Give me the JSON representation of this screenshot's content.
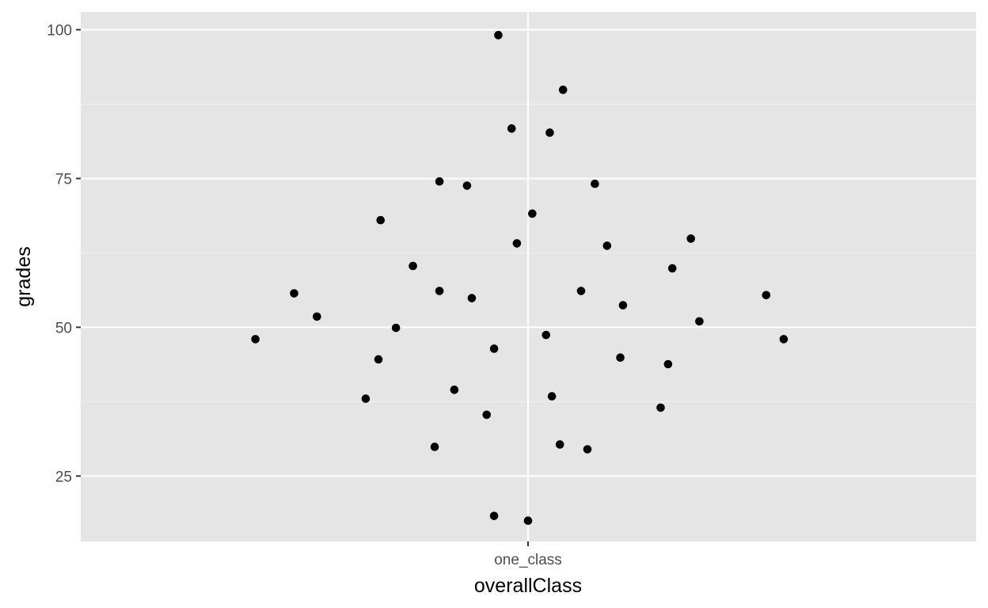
{
  "chart_data": {
    "type": "scatter",
    "title": "",
    "xlabel": "overallClass",
    "ylabel": "grades",
    "categories": [
      "one_class"
    ],
    "y_ticks": [
      25,
      50,
      75,
      100
    ],
    "ylim": [
      14,
      103
    ],
    "grid": true,
    "x_jitter_range": [
      -0.5,
      0.5
    ],
    "points": [
      {
        "x": -0.056,
        "y": 99.1
      },
      {
        "x": 0.066,
        "y": 89.9
      },
      {
        "x": -0.031,
        "y": 83.4
      },
      {
        "x": 0.041,
        "y": 82.7
      },
      {
        "x": -0.167,
        "y": 74.5
      },
      {
        "x": -0.115,
        "y": 73.8
      },
      {
        "x": 0.126,
        "y": 74.1
      },
      {
        "x": 0.008,
        "y": 69.1
      },
      {
        "x": -0.278,
        "y": 68.0
      },
      {
        "x": -0.021,
        "y": 64.1
      },
      {
        "x": 0.149,
        "y": 63.7
      },
      {
        "x": 0.307,
        "y": 64.9
      },
      {
        "x": -0.217,
        "y": 60.3
      },
      {
        "x": 0.272,
        "y": 59.9
      },
      {
        "x": -0.441,
        "y": 55.7
      },
      {
        "x": -0.167,
        "y": 56.1
      },
      {
        "x": -0.106,
        "y": 54.9
      },
      {
        "x": 0.1,
        "y": 56.1
      },
      {
        "x": 0.179,
        "y": 53.7
      },
      {
        "x": 0.449,
        "y": 55.4
      },
      {
        "x": -0.398,
        "y": 51.8
      },
      {
        "x": -0.249,
        "y": 49.9
      },
      {
        "x": 0.323,
        "y": 51.0
      },
      {
        "x": -0.514,
        "y": 48.0
      },
      {
        "x": 0.482,
        "y": 48.0
      },
      {
        "x": 0.034,
        "y": 48.7
      },
      {
        "x": -0.064,
        "y": 46.4
      },
      {
        "x": -0.282,
        "y": 44.6
      },
      {
        "x": 0.174,
        "y": 44.9
      },
      {
        "x": 0.264,
        "y": 43.8
      },
      {
        "x": -0.139,
        "y": 39.5
      },
      {
        "x": -0.306,
        "y": 38.0
      },
      {
        "x": 0.045,
        "y": 38.4
      },
      {
        "x": -0.078,
        "y": 35.3
      },
      {
        "x": 0.25,
        "y": 36.5
      },
      {
        "x": -0.176,
        "y": 29.9
      },
      {
        "x": 0.06,
        "y": 30.3
      },
      {
        "x": 0.112,
        "y": 29.5
      },
      {
        "x": -0.064,
        "y": 18.3
      },
      {
        "x": 0.0,
        "y": 17.5
      }
    ]
  }
}
